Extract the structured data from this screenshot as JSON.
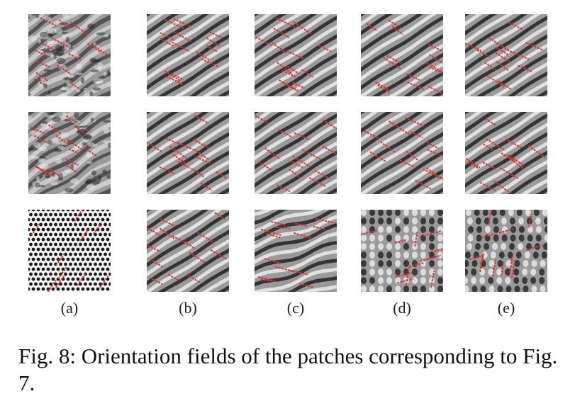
{
  "figure": {
    "columns": [
      {
        "label": "(a)"
      },
      {
        "label": "(b)"
      },
      {
        "label": "(c)"
      },
      {
        "label": "(d)"
      },
      {
        "label": "(e)"
      }
    ],
    "rows": 3,
    "colors": {
      "orientation_line": "#d9342b",
      "ridge_dark": "#1a1a1a",
      "ridge_light": "#f2f2f2",
      "background": "#9a9a9a"
    }
  },
  "caption": {
    "text": "Fig. 8: Orientation fields of the patches corresponding to Fig. 7."
  }
}
